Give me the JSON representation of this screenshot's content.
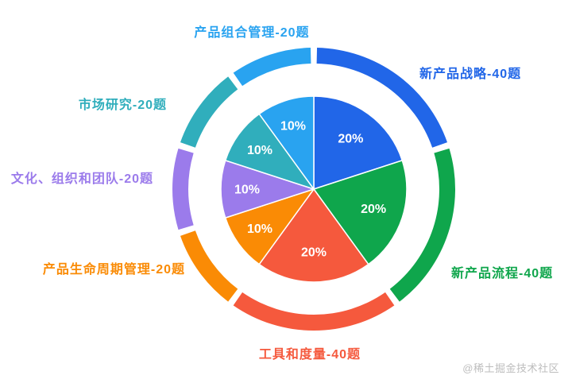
{
  "chart_data": {
    "type": "pie",
    "variant": "pie-with-segmented-outer-ring",
    "title": "",
    "unit_suffix": "题",
    "total": 200,
    "start_angle_deg": 0,
    "direction": "clockwise",
    "inner_percent_label_color": "#ffffff",
    "categories": [
      "新产品战略-40题",
      "新产品流程-40题",
      "工具和度量-40题",
      "产品生命周期管理-20题",
      "文化、组织和团队-20题",
      "市场研究-20题",
      "产品组合管理-20题"
    ],
    "values": [
      40,
      40,
      40,
      20,
      20,
      20,
      20
    ],
    "segments": [
      {
        "label": "新产品战略-40题",
        "value": 40,
        "percent": 20,
        "percent_label": "20%",
        "color": "#2166e8"
      },
      {
        "label": "新产品流程-40题",
        "value": 40,
        "percent": 20,
        "percent_label": "20%",
        "color": "#0fa64c"
      },
      {
        "label": "工具和度量-40题",
        "value": 40,
        "percent": 20,
        "percent_label": "20%",
        "color": "#f5593d"
      },
      {
        "label": "产品生命周期管理-20题",
        "value": 20,
        "percent": 10,
        "percent_label": "10%",
        "color": "#fa8b05"
      },
      {
        "label": "文化、组织和团队-20题",
        "value": 20,
        "percent": 10,
        "percent_label": "10%",
        "color": "#9b7beb"
      },
      {
        "label": "市场研究-20题",
        "value": 20,
        "percent": 10,
        "percent_label": "10%",
        "color": "#30aebc"
      },
      {
        "label": "产品组合管理-20题",
        "value": 20,
        "percent": 10,
        "percent_label": "10%",
        "color": "#29a3f0"
      }
    ],
    "legend_position": "around-chart",
    "grid": false
  },
  "watermark": {
    "text": "@稀土掘金技术社区",
    "color": "#bdbdbd"
  }
}
